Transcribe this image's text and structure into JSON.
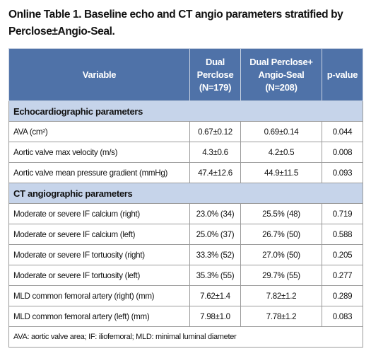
{
  "title": "Online Table 1. Baseline echo and CT angio parameters stratified by Perclose±Angio-Seal.",
  "table": {
    "columns": [
      [
        "Variable"
      ],
      [
        "Dual",
        "Perclose",
        "(N=179)"
      ],
      [
        "Dual Perclose+",
        "Angio-Seal",
        "(N=208)"
      ],
      [
        "p-value"
      ]
    ],
    "sections": [
      {
        "title": "Echocardiographic parameters",
        "rows": [
          [
            "AVA (cm²)",
            "0.67±0.12",
            "0.69±0.14",
            "0.044"
          ],
          [
            "Aortic valve max velocity (m/s)",
            "4.3±0.6",
            "4.2±0.5",
            "0.008"
          ],
          [
            "Aortic valve mean pressure gradient (mmHg)",
            "47.4±12.6",
            "44.9±11.5",
            "0.093"
          ]
        ]
      },
      {
        "title": "CT angiographic parameters",
        "rows": [
          [
            "Moderate or severe IF calcium (right)",
            "23.0% (34)",
            "25.5% (48)",
            "0.719"
          ],
          [
            "Moderate or severe IF calcium (left)",
            "25.0% (37)",
            "26.7% (50)",
            "0.588"
          ],
          [
            "Moderate or severe IF tortuosity (right)",
            "33.3% (52)",
            "27.0% (50)",
            "0.205"
          ],
          [
            "Moderate or severe IF tortuosity (left)",
            "35.3% (55)",
            "29.7% (55)",
            "0.277"
          ],
          [
            "MLD common femoral artery (right) (mm)",
            "7.62±1.4",
            "7.82±1.2",
            "0.289"
          ],
          [
            "MLD common femoral artery (left) (mm)",
            "7.98±1.0",
            "7.78±1.2",
            "0.083"
          ]
        ]
      }
    ],
    "footnote": "AVA: aortic valve area; IF: iliofemoral; MLD: minimal luminal diameter"
  }
}
